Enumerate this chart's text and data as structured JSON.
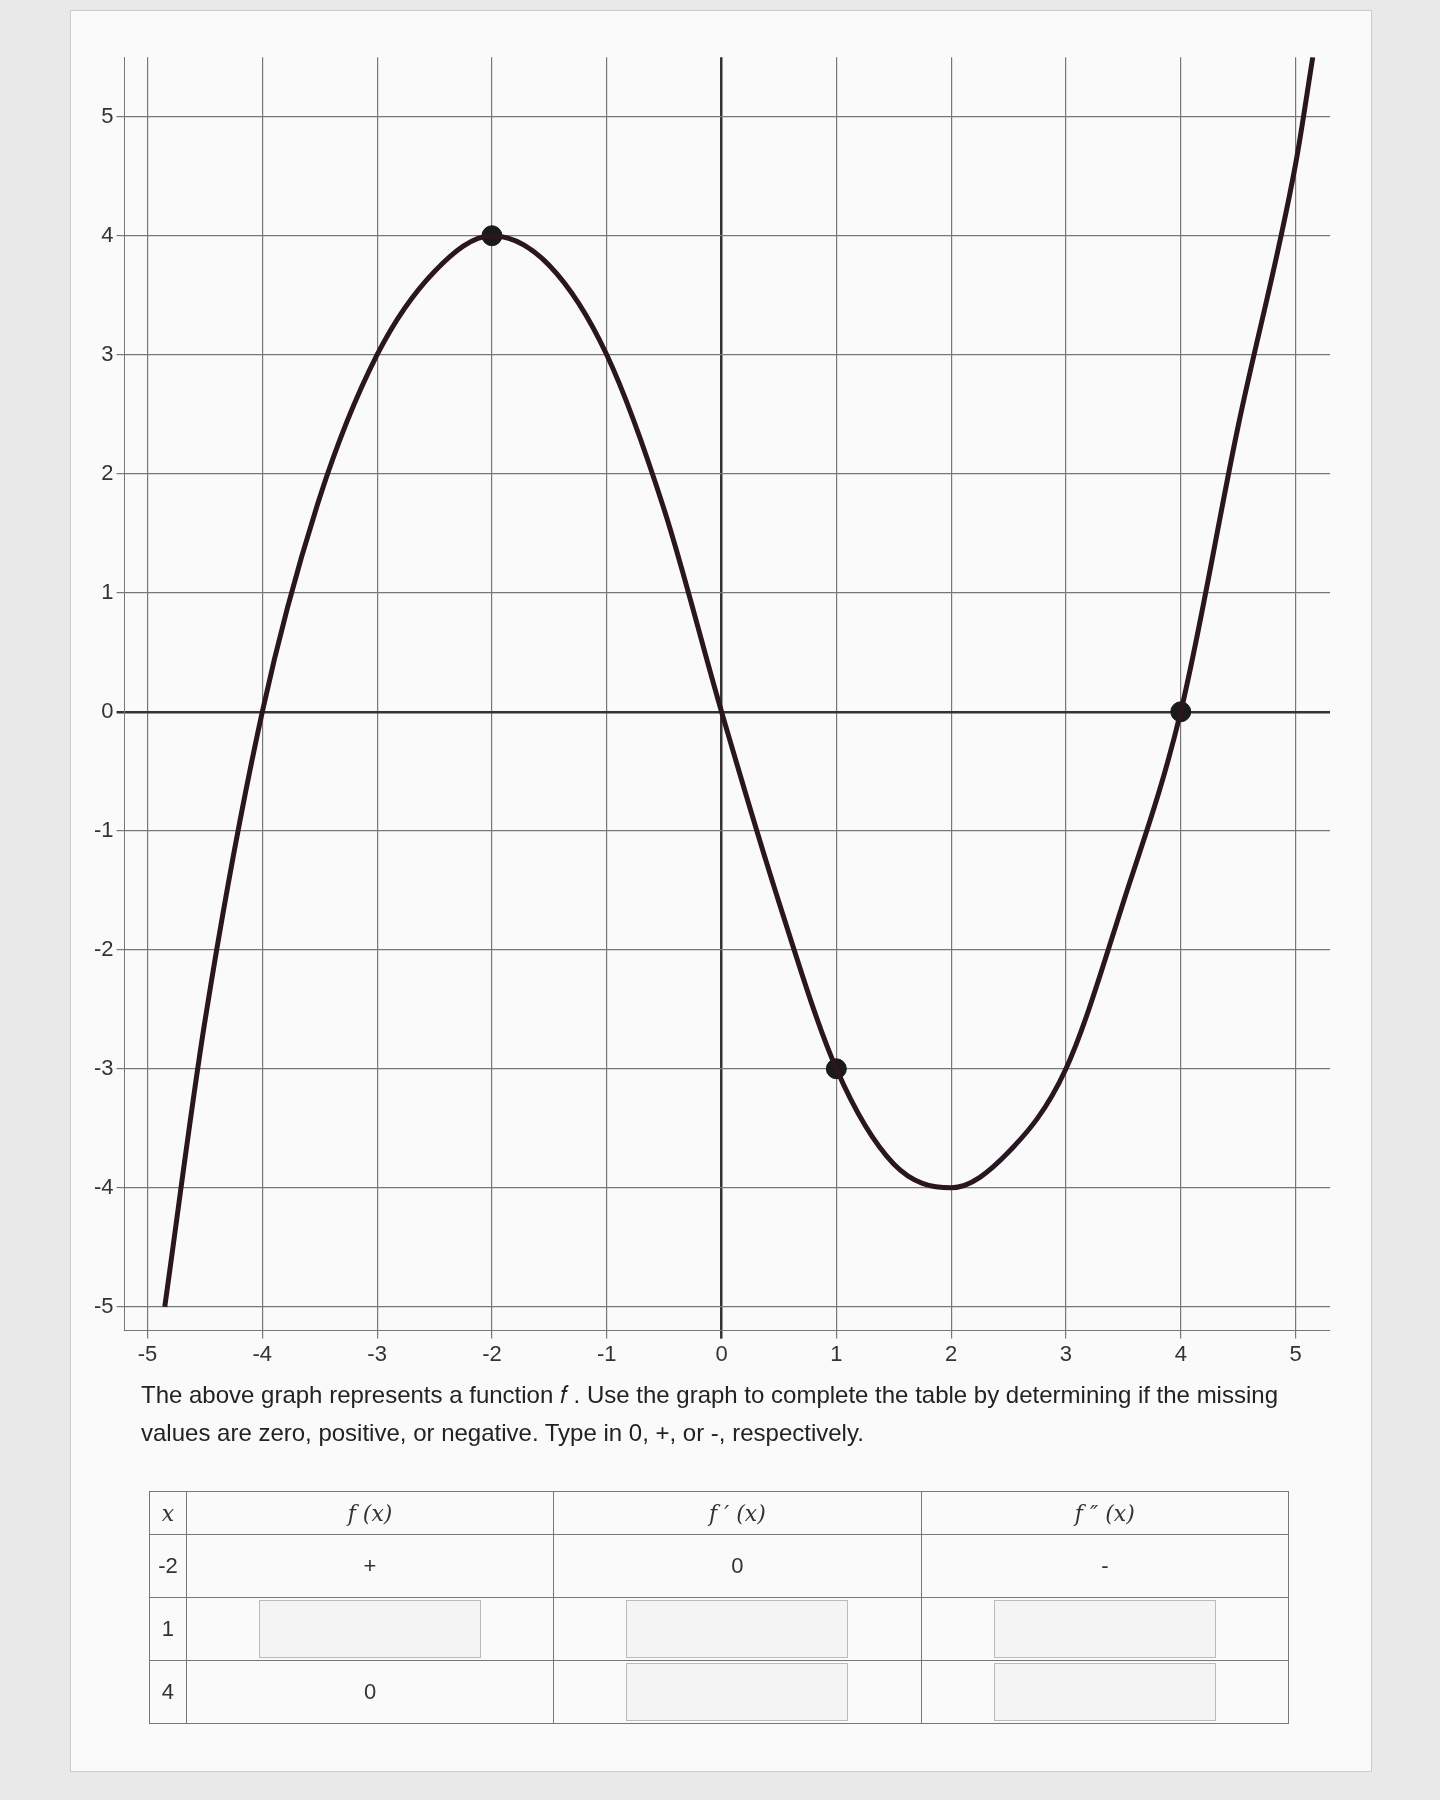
{
  "chart_data": {
    "type": "line",
    "x": [
      -4.85,
      -4.5,
      -4,
      -3.5,
      -3,
      -2.5,
      -2,
      -1.5,
      -1,
      -0.5,
      0,
      0.5,
      1,
      1.5,
      2,
      2.5,
      3,
      3.5,
      4,
      4.5,
      5,
      5.15
    ],
    "series": [
      {
        "color": "#2a1620",
        "values": [
          -5,
          -2.6,
          0,
          1.8,
          3,
          3.7,
          4,
          3.75,
          3,
          1.7,
          0,
          -1.6,
          -3,
          -3.8,
          -4,
          -3.7,
          -3,
          -1.6,
          0,
          2.4,
          4.6,
          5.5
        ]
      },
      {
        "type": "scatter",
        "marker": "circle",
        "color": "#1a1a1a",
        "x": [
          -2,
          1,
          4
        ],
        "values": [
          4,
          -3,
          0
        ]
      }
    ],
    "xlim": [
      -5.2,
      5.3
    ],
    "ylim": [
      -5.2,
      5.5
    ],
    "xticks": [
      -5,
      -4,
      -3,
      -2,
      -1,
      0,
      1,
      2,
      3,
      4,
      5
    ],
    "yticks": [
      -5,
      -4,
      -3,
      -2,
      -1,
      0,
      1,
      2,
      3,
      4,
      5
    ],
    "grid": true,
    "line_style": "solid",
    "annotations": [
      "The above graph represents a function 𝑓 .  Use the graph to complete the table by determining if the missing values are zero, positive, or negative.  Type in 0, +, or -, respectively.",
      "x",
      "f (x)",
      "f ′ (x)",
      "f ″ (x)",
      "-2",
      "+",
      "0",
      "-",
      "1",
      null,
      null,
      null,
      "4",
      "0",
      null,
      null
    ]
  }
}
